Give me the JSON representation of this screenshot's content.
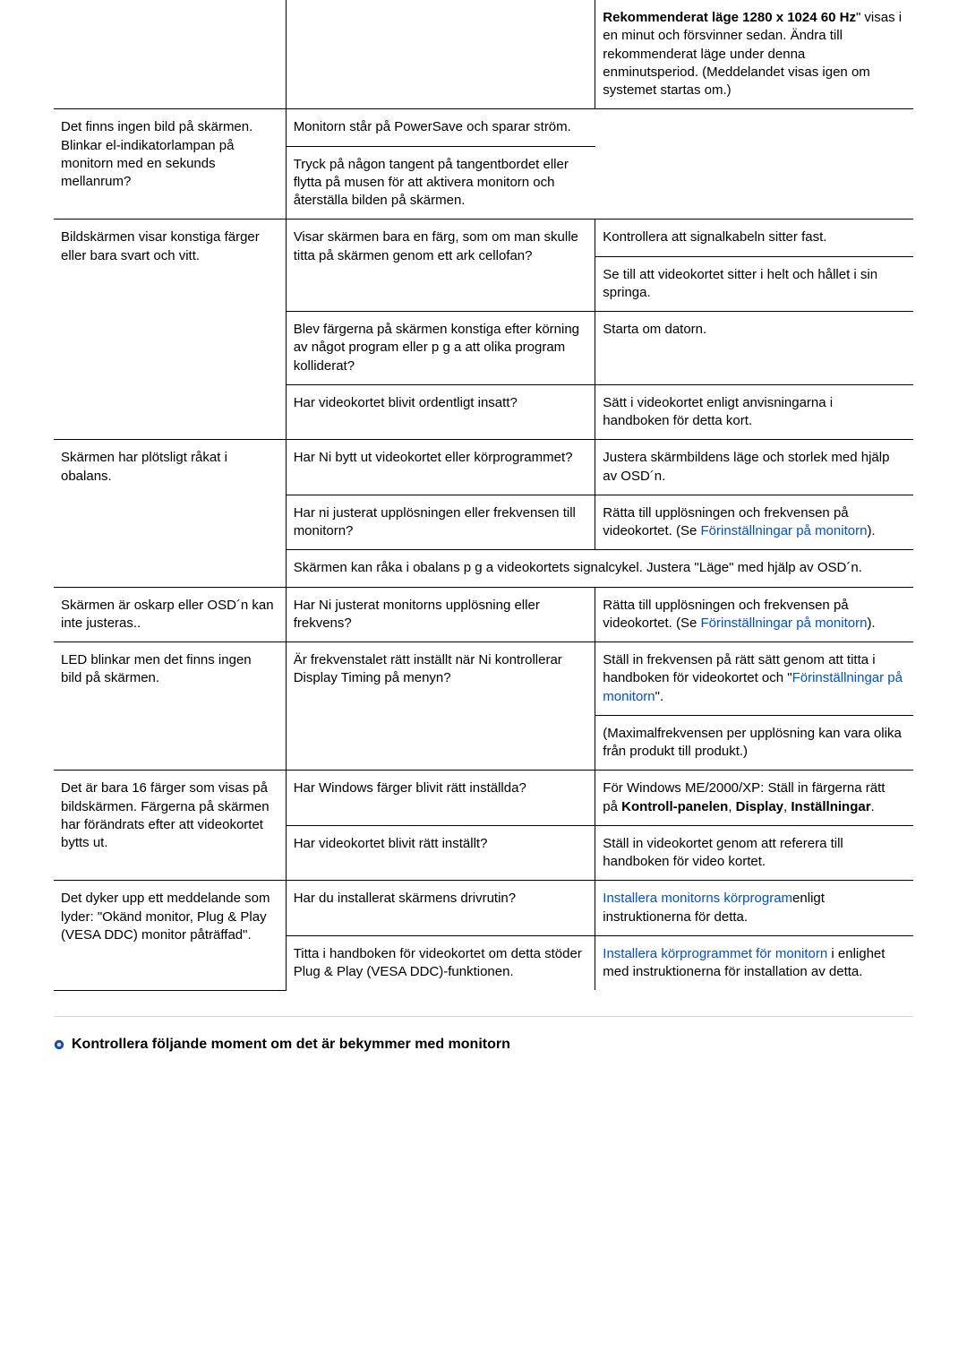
{
  "colors": {
    "text": "#000000",
    "link": "#0050c8",
    "rule": "#d8d8d8",
    "border": "#000000",
    "bullet": "#1a4aa0",
    "bullet_inner": "#cfe0f5"
  },
  "table": {
    "rows": [
      {
        "c1": "",
        "c2": "",
        "c3_parts": [
          {
            "bold": true,
            "text": "Rekommenderat läge 1280 x 1024 60 Hz"
          },
          {
            "text": "\" visas i en minut och försvinner sedan. Ändra till rekommenderat läge under denna enminutsperiod. (Meddelandet visas igen om systemet startas om.)"
          }
        ]
      },
      {
        "c2": "Det finns ingen bild på skärmen. Blinkar el-indikatorlampan på monitorn med en sekunds mellanrum?",
        "c2_rowspan": 2,
        "c3": "Monitorn står på PowerSave och sparar ström."
      },
      {
        "c3": "Tryck på någon tangent på tangentbordet eller flytta på musen för att aktivera monitorn och återställa bilden på skärmen."
      },
      {
        "c1": "Bildskärmen visar konstiga färger eller bara svart och vitt.",
        "c1_rowspan": 4,
        "c2": "Visar skärmen bara en färg, som om man skulle titta på skärmen genom ett ark cellofan?",
        "c2_rowspan": 2,
        "c3": "Kontrollera att signalkabeln sitter fast."
      },
      {
        "c3": "Se till att videokortet sitter i helt och hållet i sin springa."
      },
      {
        "c2": "Blev färgerna på skärmen konstiga efter körning av något program eller p g a att olika program kolliderat?",
        "c3": "Starta om datorn."
      },
      {
        "c2": "Har videokortet blivit ordentligt insatt?",
        "c3": "Sätt i videokortet enligt anvisningarna i handboken för detta kort."
      },
      {
        "c1": "Skärmen har plötsligt råkat i obalans.",
        "c1_rowspan": 3,
        "c2": "Har Ni bytt ut videokortet eller körprogrammet?",
        "c3": "Justera skärmbildens läge och storlek med hjälp av OSD´n."
      },
      {
        "c2": "Har ni justerat upplösningen eller frekvensen till monitorn?",
        "c3_parts": [
          {
            "text": "Rätta till upplösningen och frekvensen på videokortet.\n(Se "
          },
          {
            "link": true,
            "text": "Förinställningar på monitorn"
          },
          {
            "text": ")."
          }
        ]
      },
      {
        "c2_colspan": 2,
        "c2": "Skärmen kan råka i obalans p g a videokortets signalcykel. Justera \"Läge\" med hjälp av OSD´n."
      },
      {
        "c1": "Skärmen är oskarp eller OSD´n kan inte justeras..",
        "c2": "Har Ni justerat monitorns upplösning eller frekvens?",
        "c3_parts": [
          {
            "text": "Rätta till upplösningen och frekvensen på videokortet.\n(Se "
          },
          {
            "link": true,
            "text": "Förinställningar på monitorn"
          },
          {
            "text": ")."
          }
        ]
      },
      {
        "c1": "LED blinkar men det finns ingen bild på skärmen.",
        "c1_rowspan": 2,
        "c2": "Är frekvenstalet rätt inställt när Ni kontrollerar Display Timing på menyn?",
        "c2_rowspan": 2,
        "c3_parts": [
          {
            "text": "Ställ in frekvensen på rätt sätt genom att titta i handboken för videokortet och \""
          },
          {
            "link": true,
            "text": "Förinställningar på monitorn"
          },
          {
            "text": "\"."
          }
        ]
      },
      {
        "c3": "(Maximalfrekvensen per upplösning kan vara olika från produkt till produkt.)"
      },
      {
        "c1": "Det är bara 16 färger som visas på bildskärmen. Färgerna på skärmen har förändrats efter att videokortet bytts ut.",
        "c1_rowspan": 2,
        "c2": "Har Windows färger blivit rätt inställda?",
        "c3_parts": [
          {
            "text": "För Windows ME/2000/XP: Ställ in färgerna rätt på "
          },
          {
            "bold": true,
            "text": "Kontroll-panelen"
          },
          {
            "text": ", "
          },
          {
            "bold": true,
            "text": "Display"
          },
          {
            "text": ", "
          },
          {
            "bold": true,
            "text": "Inställningar"
          },
          {
            "text": "."
          }
        ]
      },
      {
        "c2": "Har videokortet blivit rätt inställt?",
        "c3": "Ställ in videokortet genom att referera till handboken för video kortet."
      },
      {
        "c1": "Det dyker upp ett meddelande som lyder: \"Okänd monitor, Plug & Play (VESA DDC) monitor påträffad\".",
        "c1_rowspan": 2,
        "c2": "Har du installerat skärmens drivrutin?",
        "c3_parts": [
          {
            "link": true,
            "text": "Installera monitorns körprogram"
          },
          {
            "text": "enligt instruktionerna för detta."
          }
        ]
      },
      {
        "c2": "Titta i handboken för videokortet om detta stöder Plug & Play (VESA DDC)-funktionen.",
        "c3_parts": [
          {
            "link": true,
            "text": "Installera körprogrammet för monitorn"
          },
          {
            "text": " i enlighet med instruktionerna för installation av detta."
          }
        ]
      }
    ]
  },
  "section_title": "Kontrollera följande moment om det är bekymmer med monitorn"
}
